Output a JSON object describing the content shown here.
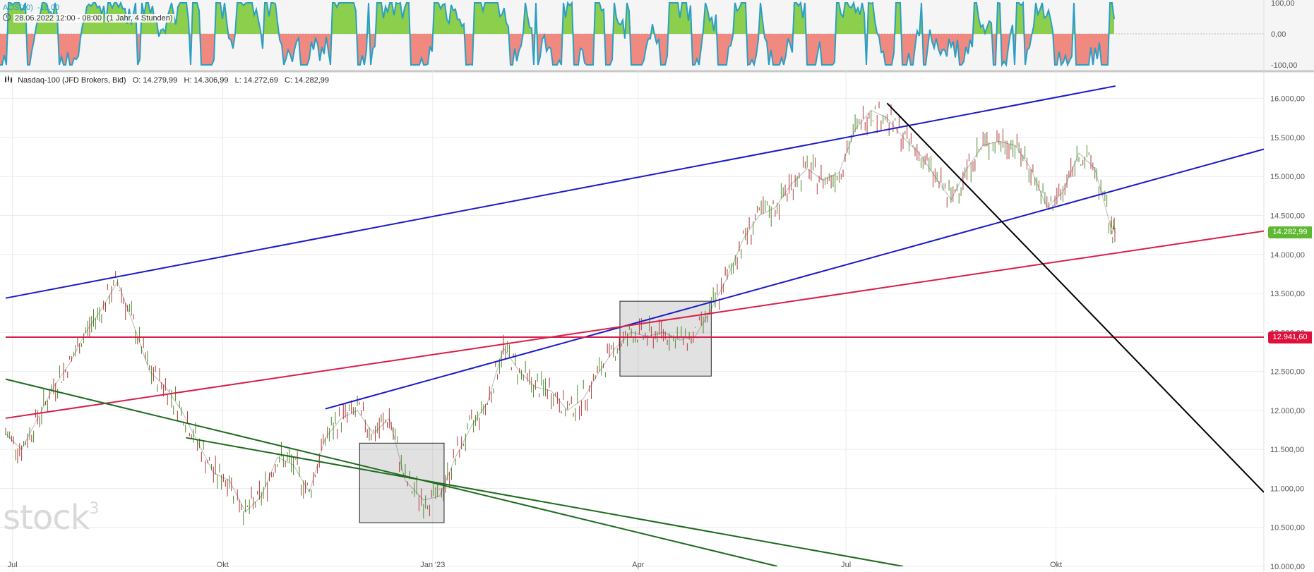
{
  "indicator": {
    "name": "AOS(10)",
    "value": "-10,00",
    "period_range": "28.06.2022 12:00 - 08:00",
    "period_desc": "(1 Jahr, 4 Stunden)",
    "color": "#2a9fc4",
    "positive_fill": "#8ccf4d",
    "negative_fill": "#f08a80",
    "y_ticks": [
      "100,00",
      "0,00",
      "-100,00"
    ]
  },
  "instrument": {
    "name": "Nasdaq-100 (JFD Brokers, Bid)",
    "open": "O: 14.279,99",
    "high": "H: 14.306,99",
    "low": "L: 14.272,69",
    "close": "C: 14.282,99"
  },
  "price_tags": {
    "last": "14.282,99",
    "last_color": "#5fb832",
    "level": "12.941,60",
    "level_color": "#e0103c"
  },
  "watermark": {
    "text": "stock",
    "superscript": "3"
  },
  "chart_data": {
    "type": "line",
    "title": "",
    "xlabel": "",
    "ylabel": "",
    "x_ticks": [
      "Jul",
      "Okt",
      "Jan '23",
      "Apr",
      "Jul",
      "Okt"
    ],
    "y_ticks": [
      "16.000,00",
      "15.500,00",
      "15.000,00",
      "14.500,00",
      "14.000,00",
      "13.500,00",
      "13.000,00",
      "12.500,00",
      "12.000,00",
      "11.500,00",
      "11.000,00",
      "10.500,00",
      "10.000,00"
    ],
    "ylim": [
      10000,
      16250
    ],
    "grid": true,
    "series": [
      {
        "x": [
          "2022-06-28",
          "2022-07-05",
          "2022-07-12",
          "2022-07-19",
          "2022-07-26",
          "2022-08-02",
          "2022-08-09",
          "2022-08-16",
          "2022-08-23",
          "2022-08-30",
          "2022-09-06",
          "2022-09-13",
          "2022-09-20",
          "2022-09-27",
          "2022-10-04",
          "2022-10-11",
          "2022-10-18",
          "2022-10-25",
          "2022-11-01",
          "2022-11-08",
          "2022-11-15",
          "2022-11-22",
          "2022-11-29",
          "2022-12-06",
          "2022-12-13",
          "2022-12-20",
          "2022-12-28",
          "2023-01-04",
          "2023-01-11",
          "2023-01-18",
          "2023-01-25",
          "2023-02-01",
          "2023-02-08",
          "2023-02-15",
          "2023-02-22",
          "2023-03-01",
          "2023-03-08",
          "2023-03-15",
          "2023-03-22",
          "2023-03-29",
          "2023-04-05",
          "2023-04-12",
          "2023-04-19",
          "2023-04-26",
          "2023-05-03",
          "2023-05-10",
          "2023-05-17",
          "2023-05-24",
          "2023-05-31",
          "2023-06-07",
          "2023-06-14",
          "2023-06-21",
          "2023-06-28",
          "2023-07-05",
          "2023-07-12",
          "2023-07-19",
          "2023-07-26",
          "2023-08-02",
          "2023-08-09",
          "2023-08-16",
          "2023-08-23",
          "2023-08-30",
          "2023-09-06",
          "2023-09-13",
          "2023-09-20",
          "2023-09-27",
          "2023-10-04",
          "2023-10-11",
          "2023-10-18",
          "2023-10-25",
          "2023-10-27"
        ],
        "y": [
          11700,
          11500,
          11900,
          12300,
          12600,
          13000,
          13300,
          13650,
          13100,
          12500,
          12300,
          12000,
          11600,
          11200,
          11100,
          10700,
          10900,
          11400,
          11300,
          10950,
          11650,
          11900,
          12000,
          11700,
          11900,
          11100,
          10850,
          10900,
          11400,
          11800,
          12100,
          12800,
          12500,
          12300,
          12250,
          12000,
          12150,
          12500,
          12800,
          13000,
          12950,
          13000,
          12900,
          12950,
          13300,
          13700,
          14200,
          14500,
          14600,
          14900,
          15100,
          14950,
          15050,
          15600,
          15850,
          15750,
          15500,
          15300,
          15000,
          14700,
          15100,
          15400,
          15450,
          15400,
          15100,
          14600,
          14800,
          15300,
          15100,
          14350,
          14280
        ]
      }
    ],
    "trendlines": [
      {
        "color": "#1a1ac8",
        "points": [
          [
            "2022-06-28",
            13440
          ],
          [
            "2023-10-27",
            16160
          ]
        ]
      },
      {
        "color": "#1a1ac8",
        "points": [
          [
            "2022-11-15",
            12020
          ],
          [
            "2023-12-31",
            15350
          ]
        ]
      },
      {
        "color": "#d81e4a",
        "points": [
          [
            "2022-06-28",
            11900
          ],
          [
            "2023-12-31",
            14300
          ]
        ]
      },
      {
        "color": "#d81e4a",
        "points": [
          [
            "2022-06-28",
            12940
          ],
          [
            "2023-12-31",
            12940
          ]
        ]
      },
      {
        "color": "#000000",
        "points": [
          [
            "2023-07-19",
            15940
          ],
          [
            "2023-12-31",
            10950
          ]
        ]
      },
      {
        "color": "#1e6b1e",
        "points": [
          [
            "2022-06-28",
            12400
          ],
          [
            "2023-06-01",
            10000
          ]
        ]
      },
      {
        "color": "#1e6b1e",
        "points": [
          [
            "2022-09-15",
            11650
          ],
          [
            "2023-07-26",
            10000
          ]
        ]
      }
    ],
    "boxes": [
      {
        "x": [
          "2022-11-30",
          "2023-01-06"
        ],
        "y": [
          10560,
          11580
        ]
      },
      {
        "x": [
          "2023-03-24",
          "2023-05-03"
        ],
        "y": [
          12440,
          13400
        ]
      }
    ]
  }
}
